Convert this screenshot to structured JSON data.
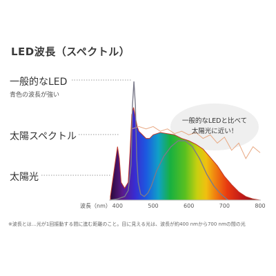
{
  "title": "LED波長（スペクトル）",
  "labels": {
    "led": "一般的なLED",
    "led_sub": "青色の波長が強い",
    "sun_spectrum": "太陽スペクトル",
    "sunlight": "太陽光"
  },
  "bubble": {
    "line1": "一般的なLEDと比べて",
    "line2": "太陽光に近い！"
  },
  "note": "※波長とは…光が1回振動する間に進む距離のこと。目に見える光は、波長が約400 nmから700 nmの間の光",
  "colors": {
    "led_line": "#7a7a8a",
    "sun_line": "#e8a882",
    "spectrum_edge": "#c0392b",
    "bubble": "#efefef"
  },
  "chart_data": {
    "type": "line",
    "xlabel": "波長（nm）",
    "xlim": [
      380,
      800
    ],
    "ylim": [
      0,
      1
    ],
    "x_ticks": [
      400,
      500,
      600,
      700,
      800
    ],
    "grid": false,
    "legend": "none",
    "series": [
      {
        "name": "太陽スペクトル",
        "x": [
          380,
          395,
          400,
          405,
          410,
          420,
          430,
          435,
          440,
          445,
          450,
          455,
          460,
          470,
          480,
          490,
          500,
          520,
          540,
          560,
          580,
          600,
          620,
          640,
          660,
          680,
          700,
          720,
          740,
          760,
          780,
          800
        ],
        "values": [
          0.03,
          0.35,
          0.45,
          0.35,
          0.15,
          0.1,
          0.15,
          0.4,
          0.72,
          0.78,
          0.7,
          0.62,
          0.58,
          0.55,
          0.52,
          0.52,
          0.55,
          0.57,
          0.56,
          0.55,
          0.52,
          0.5,
          0.47,
          0.43,
          0.36,
          0.29,
          0.2,
          0.13,
          0.07,
          0.03,
          0.01,
          0.0
        ]
      },
      {
        "name": "一般的なLED",
        "x": [
          380,
          400,
          420,
          430,
          438,
          442,
          446,
          450,
          454,
          458,
          465,
          475,
          485,
          495,
          510,
          530,
          550,
          570,
          590,
          610,
          630,
          650,
          670,
          690,
          710
        ],
        "values": [
          0.0,
          0.01,
          0.03,
          0.08,
          0.3,
          0.8,
          1.0,
          0.8,
          0.35,
          0.15,
          0.05,
          0.03,
          0.06,
          0.12,
          0.25,
          0.37,
          0.45,
          0.5,
          0.5,
          0.45,
          0.35,
          0.22,
          0.12,
          0.05,
          0.0
        ]
      },
      {
        "name": "太陽光",
        "x": [
          440,
          460,
          480,
          500,
          520,
          540,
          560,
          580,
          600,
          620,
          640,
          660,
          680,
          700,
          720,
          740,
          760,
          780,
          800
        ],
        "values": [
          0.6,
          0.62,
          0.6,
          0.62,
          0.58,
          0.6,
          0.56,
          0.58,
          0.55,
          0.57,
          0.52,
          0.55,
          0.48,
          0.53,
          0.42,
          0.48,
          0.35,
          0.45,
          0.4
        ]
      }
    ]
  }
}
